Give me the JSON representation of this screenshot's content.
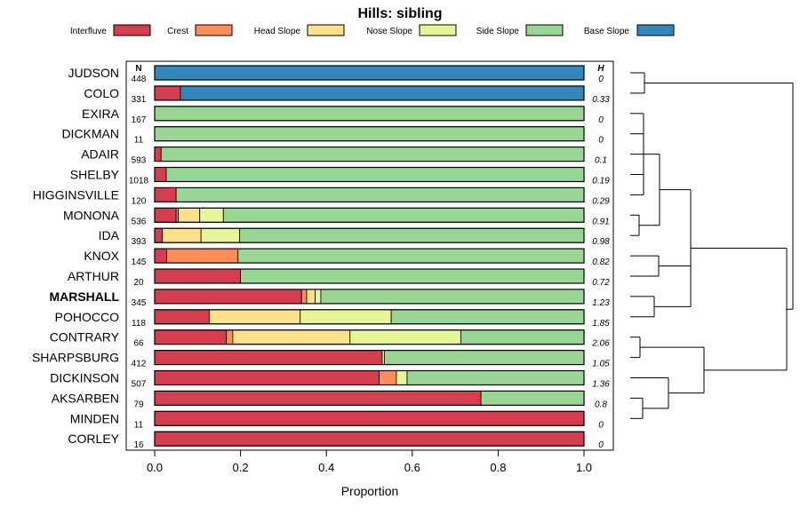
{
  "chart_data": {
    "type": "bar",
    "orientation": "horizontal",
    "stacked": true,
    "title": "Hills: sibling",
    "xlabel": "Proportion",
    "xlim": [
      0,
      1
    ],
    "xticks": [
      "0.0",
      "0.2",
      "0.4",
      "0.6",
      "0.8",
      "1.0"
    ],
    "tick_values": [
      0,
      0.2,
      0.4,
      0.6,
      0.8,
      1.0
    ],
    "n_header": "N",
    "h_header": "H",
    "legend_position": "top",
    "highlighted_category": "MARSHALL",
    "series": [
      {
        "name": "Interfluve",
        "color": "#D53E4F"
      },
      {
        "name": "Crest",
        "color": "#FC8D59"
      },
      {
        "name": "Head Slope",
        "color": "#FEE08B"
      },
      {
        "name": "Nose Slope",
        "color": "#E6F598"
      },
      {
        "name": "Side Slope",
        "color": "#99D594"
      },
      {
        "name": "Base Slope",
        "color": "#3288BD"
      }
    ],
    "rows": [
      {
        "name": "JUDSON",
        "n": "448",
        "h": "0",
        "values": [
          0,
          0,
          0,
          0,
          0,
          1.0
        ]
      },
      {
        "name": "COLO",
        "n": "331",
        "h": "0.33",
        "values": [
          0.06,
          0,
          0,
          0,
          0,
          0.94
        ]
      },
      {
        "name": "EXIRA",
        "n": "167",
        "h": "0",
        "values": [
          0,
          0,
          0,
          0,
          1.0,
          0
        ]
      },
      {
        "name": "DICKMAN",
        "n": "11",
        "h": "0",
        "values": [
          0,
          0,
          0,
          0,
          1.0,
          0
        ]
      },
      {
        "name": "ADAIR",
        "n": "593",
        "h": "0.1",
        "values": [
          0.015,
          0,
          0,
          0,
          0.985,
          0
        ]
      },
      {
        "name": "SHELBY",
        "n": "1018",
        "h": "0.19",
        "values": [
          0.027,
          0,
          0,
          0,
          0.973,
          0
        ]
      },
      {
        "name": "HIGGINSVILLE",
        "n": "120",
        "h": "0.29",
        "values": [
          0.05,
          0,
          0,
          0,
          0.95,
          0
        ]
      },
      {
        "name": "MONONA",
        "n": "536",
        "h": "0.91",
        "values": [
          0.05,
          0.005,
          0.05,
          0.055,
          0.84,
          0
        ]
      },
      {
        "name": "IDA",
        "n": "393",
        "h": "0.98",
        "values": [
          0.018,
          0,
          0.09,
          0.09,
          0.802,
          0
        ]
      },
      {
        "name": "KNOX",
        "n": "145",
        "h": "0.82",
        "values": [
          0.028,
          0.166,
          0,
          0,
          0.806,
          0
        ]
      },
      {
        "name": "ARTHUR",
        "n": "20",
        "h": "0.72",
        "values": [
          0.2,
          0,
          0,
          0,
          0.8,
          0
        ]
      },
      {
        "name": "MARSHALL",
        "n": "345",
        "h": "1.23",
        "values": [
          0.342,
          0.012,
          0.02,
          0.013,
          0.613,
          0
        ]
      },
      {
        "name": "POHOCCO",
        "n": "118",
        "h": "1.85",
        "values": [
          0.127,
          0,
          0.212,
          0.212,
          0.449,
          0
        ]
      },
      {
        "name": "CONTRARY",
        "n": "66",
        "h": "2.06",
        "values": [
          0.167,
          0.015,
          0.273,
          0.258,
          0.287,
          0
        ]
      },
      {
        "name": "SHARPSBURG",
        "n": "412",
        "h": "1.05",
        "values": [
          0.53,
          0,
          0,
          0.005,
          0.465,
          0
        ]
      },
      {
        "name": "DICKINSON",
        "n": "507",
        "h": "1.36",
        "values": [
          0.523,
          0.04,
          0,
          0.025,
          0.412,
          0
        ]
      },
      {
        "name": "AKSARBEN",
        "n": "79",
        "h": "0.8",
        "values": [
          0.76,
          0,
          0,
          0,
          0.24,
          0
        ]
      },
      {
        "name": "MINDEN",
        "n": "11",
        "h": "0",
        "values": [
          1.0,
          0,
          0,
          0,
          0,
          0
        ]
      },
      {
        "name": "CORLEY",
        "n": "16",
        "h": "0",
        "values": [
          1.0,
          0,
          0,
          0,
          0,
          0
        ]
      }
    ],
    "dendrogram": "hierarchical clustering tree of rows (right side)"
  }
}
